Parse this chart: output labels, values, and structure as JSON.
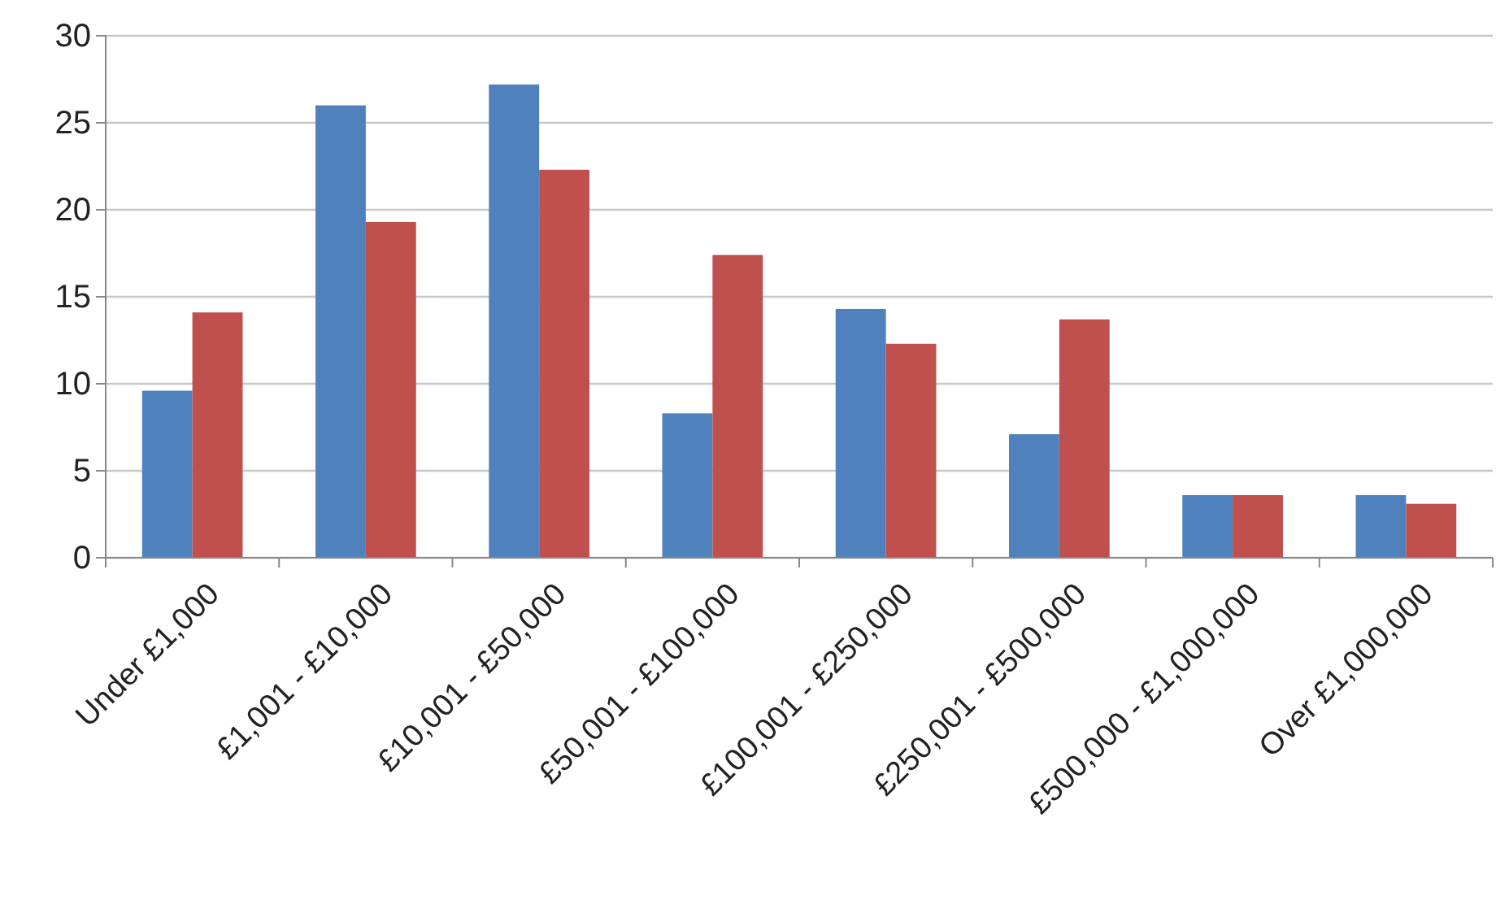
{
  "chart_data": {
    "type": "bar",
    "categories": [
      "Under £1,000",
      "£1,001 - £10,000",
      "£10,001 - £50,000",
      "£50,001 - £100,000",
      "£100,001 - £250,000",
      "£250,001 - £500,000",
      "£500,000 - £1,000,000",
      "Over £1,000,000"
    ],
    "series": [
      {
        "color": "#4f81bd",
        "values": [
          9.6,
          26.0,
          27.2,
          8.3,
          14.3,
          7.1,
          3.6,
          3.6
        ]
      },
      {
        "color": "#c0504d",
        "values": [
          14.1,
          19.3,
          22.3,
          17.4,
          12.3,
          13.7,
          3.6,
          3.1
        ]
      }
    ],
    "ylim": [
      0,
      30
    ],
    "yticks": [
      0,
      5,
      10,
      15,
      20,
      25,
      30
    ],
    "grid": "y"
  }
}
